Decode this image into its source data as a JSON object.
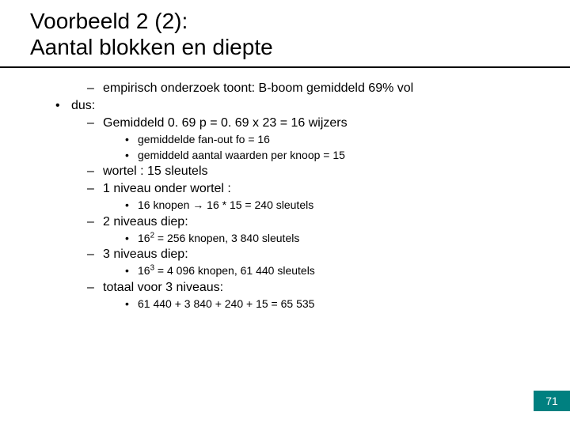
{
  "title": {
    "line1": "Voorbeeld 2 (2):",
    "line2": "Aantal blokken en diepte"
  },
  "bullets": {
    "empirical": "empirisch onderzoek toont: B-boom gemiddeld 69% vol",
    "dus": "dus:",
    "gemiddeld_p": "Gemiddeld 0. 69 p = 0. 69 x 23 = 16 wijzers",
    "fanout": "gemiddelde fan-out fo = 16",
    "per_knoop": "gemiddeld aantal waarden per knoop = 15",
    "wortel": "wortel : 15 sleutels",
    "niveau1": "1 niveau onder wortel :",
    "niveau1_calc": "16 knopen → 16 * 15 = 240 sleutels",
    "niveau2": "2 niveaus diep:",
    "niveau2_calc_pre": "16",
    "niveau2_calc_sup": "2",
    "niveau2_calc_post": " = 256 knopen, 3 840 sleutels",
    "niveau3": "3 niveaus diep:",
    "niveau3_calc_pre": "16",
    "niveau3_calc_sup": "3",
    "niveau3_calc_post": " = 4 096 knopen, 61 440 sleutels",
    "totaal": "totaal voor 3 niveaus:",
    "totaal_calc": "61 440 + 3 840 + 240 + 15 = 65 535"
  },
  "colors": {
    "accent": "#008080",
    "rule": "#000000",
    "text": "#000000",
    "background": "#ffffff"
  },
  "page_number": "71"
}
